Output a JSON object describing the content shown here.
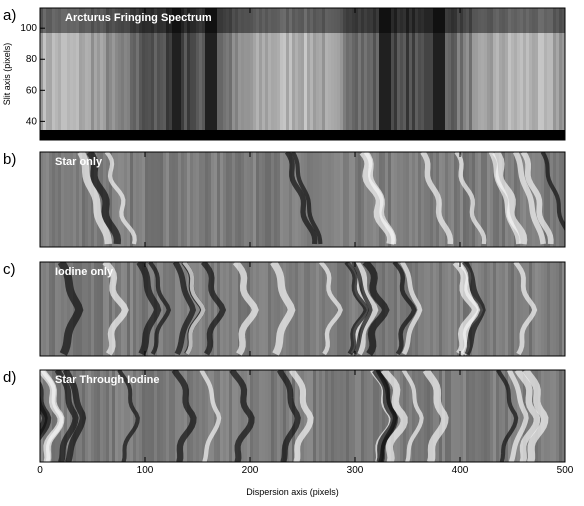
{
  "chart_data": [
    {
      "type": "image",
      "panel_label": "a)",
      "title": "Arcturus Fringing Spectrum",
      "ylabel": "Slit axis (pixels)",
      "ylim": [
        28,
        113
      ],
      "yticks": [
        40,
        60,
        80,
        100
      ],
      "xlim": [
        0,
        500
      ],
      "xticks": [
        0,
        100,
        200,
        300,
        400,
        500
      ]
    },
    {
      "type": "image",
      "panel_label": "b)",
      "title": "Star only",
      "xlim": [
        0,
        500
      ],
      "xticks": [
        0,
        100,
        200,
        300,
        400,
        500
      ]
    },
    {
      "type": "image",
      "panel_label": "c)",
      "title": "Iodine only",
      "xlim": [
        0,
        500
      ],
      "xticks": [
        0,
        100,
        200,
        300,
        400,
        500
      ]
    },
    {
      "type": "image",
      "panel_label": "d)",
      "title": "Star Through Iodine",
      "xlabel": "Dispersion axis (pixels)",
      "xlim": [
        0,
        500
      ],
      "xticks": [
        0,
        100,
        200,
        300,
        400,
        500
      ]
    }
  ]
}
